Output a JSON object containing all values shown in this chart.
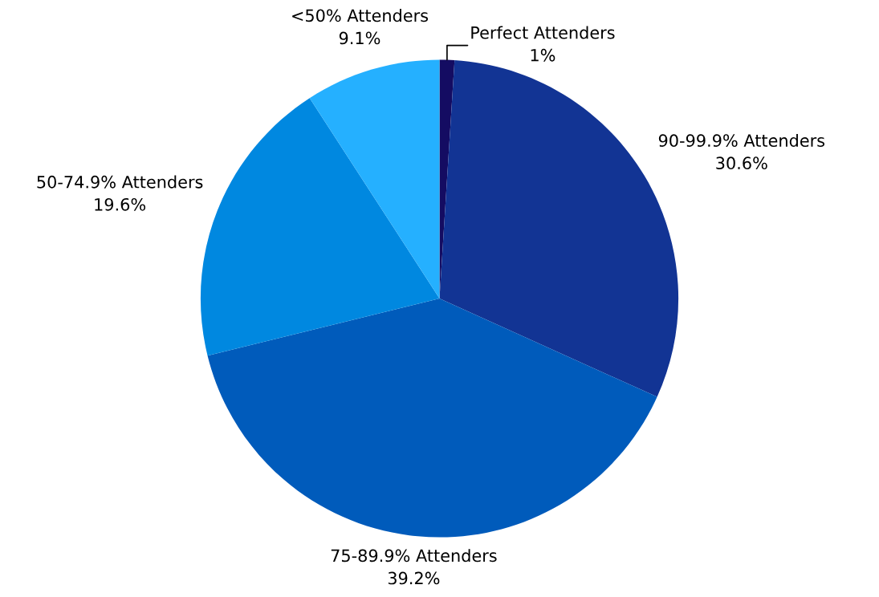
{
  "chart_data": {
    "type": "pie",
    "categories": [
      "Perfect Attenders",
      "90-99.9% Attenders",
      "75-89.9% Attenders",
      "50-74.9% Attenders",
      "<50% Attenders"
    ],
    "values": [
      1,
      30.6,
      39.2,
      19.6,
      9.1
    ],
    "colors": [
      "#140c62",
      "#123494",
      "#005bbb",
      "#0088e0",
      "#25b0ff"
    ],
    "value_labels": [
      "1%",
      "30.6%",
      "39.2%",
      "19.6%",
      "9.1%"
    ]
  }
}
